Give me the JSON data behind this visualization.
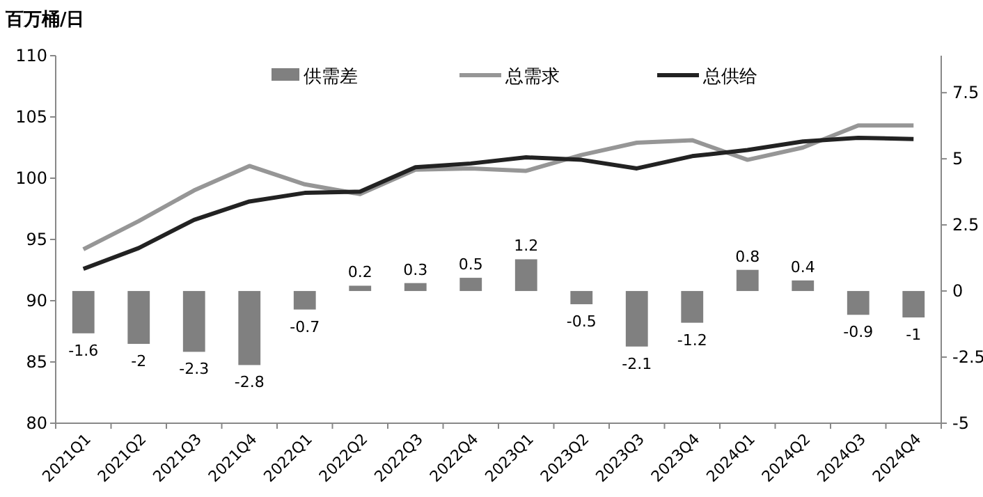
{
  "chart_data": {
    "type": "bar",
    "title": "百万桶/日",
    "categories": [
      "2021Q1",
      "2021Q2",
      "2021Q3",
      "2021Q4",
      "2022Q1",
      "2022Q2",
      "2022Q3",
      "2022Q4",
      "2023Q1",
      "2023Q2",
      "2023Q3",
      "2023Q4",
      "2024Q1",
      "2024Q2",
      "2024Q3",
      "2024Q4"
    ],
    "series": [
      {
        "name": "供需差",
        "axis": "y2",
        "color": "#808080",
        "values": [
          -1.6,
          -2,
          -2.3,
          -2.8,
          -0.7,
          0.2,
          0.3,
          0.5,
          1.2,
          -0.5,
          -2.1,
          -1.2,
          0.8,
          0.4,
          -0.9,
          -1
        ],
        "value_labels": [
          "-1.6",
          "-2",
          "-2.3",
          "-2.8",
          "-0.7",
          "0.2",
          "0.3",
          "0.5",
          "1.2",
          "-0.5",
          "-2.1",
          "-1.2",
          "0.8",
          "0.4",
          "-0.9",
          "-1"
        ]
      },
      {
        "name": "总需求",
        "type": "line",
        "color": "#969696",
        "values": [
          94.2,
          96.5,
          99.0,
          101.0,
          99.5,
          98.7,
          100.7,
          100.8,
          100.6,
          101.9,
          102.9,
          103.1,
          101.5,
          102.5,
          104.3,
          104.3
        ]
      },
      {
        "name": "总供给",
        "type": "line",
        "color": "#222222",
        "values": [
          92.6,
          94.3,
          96.6,
          98.1,
          98.8,
          98.9,
          100.9,
          101.2,
          101.7,
          101.5,
          100.8,
          101.8,
          102.3,
          103.0,
          103.3,
          103.2
        ]
      }
    ],
    "ylim": [
      80,
      110
    ],
    "yticks": [
      80,
      85,
      90,
      95,
      100,
      105,
      110
    ],
    "y2lim": [
      -5,
      8.9
    ],
    "y2ticks": [
      -5,
      -2.5,
      0,
      2.5,
      5,
      7.5
    ],
    "legend": "top",
    "grid": false
  }
}
